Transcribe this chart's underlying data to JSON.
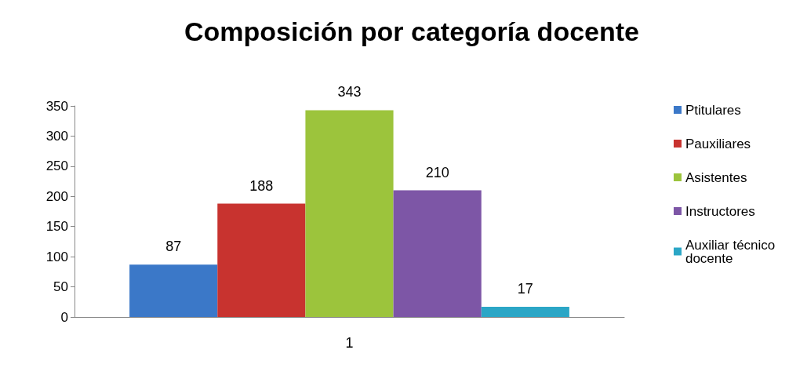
{
  "chart_data": {
    "type": "bar",
    "title": "Composición por categoría docente",
    "categories": [
      "1"
    ],
    "series": [
      {
        "name": "Ptitulares",
        "color": "#3b78c8",
        "values": [
          87
        ]
      },
      {
        "name": "Pauxiliares",
        "color": "#c8332f",
        "values": [
          188
        ]
      },
      {
        "name": "Asistentes",
        "color": "#9cc43c",
        "values": [
          343
        ]
      },
      {
        "name": "Instructores",
        "color": "#7d56a6",
        "values": [
          210
        ]
      },
      {
        "name": "Auxiliar técnico docente",
        "color": "#2ba6c6",
        "values": [
          17
        ]
      }
    ],
    "ylim": [
      0,
      350
    ],
    "yticks": [
      0,
      50,
      100,
      150,
      200,
      250,
      300,
      350
    ],
    "grid": false,
    "legend": "right",
    "data_labels": true
  }
}
